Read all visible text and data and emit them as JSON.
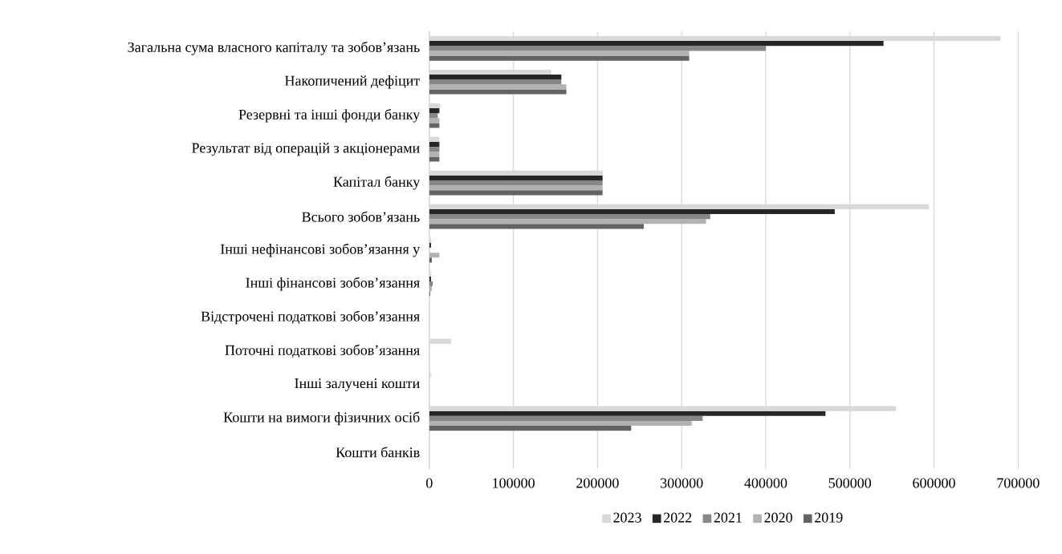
{
  "chart_data": {
    "type": "bar",
    "orientation": "horizontal",
    "categories": [
      "Загальна сума власного капіталу та зобов’язань",
      "Накопичений дефіцит",
      "Резервні та інші фонди банку",
      "Результат від операцій з акціонерами",
      "Капітал банку",
      "Всього зобов’язань",
      "Інші нефінансові зобов’язання у",
      "Інші фінансові зобов’язання",
      "Відстрочені податкові зобов’язання",
      "Поточні податкові зобов’язання",
      "Інші залучені кошти",
      "Кошти на вимоги фізичних осіб",
      "Кошти банків"
    ],
    "series": [
      {
        "name": "2023",
        "color": "#d9d9d9",
        "values": [
          679000,
          145000,
          13000,
          12000,
          206000,
          594000,
          2000,
          2000,
          0,
          26000,
          2000,
          555000,
          0
        ]
      },
      {
        "name": "2022",
        "color": "#262626",
        "values": [
          540000,
          157000,
          12000,
          12000,
          206000,
          482000,
          2000,
          2000,
          0,
          0,
          0,
          471000,
          0
        ]
      },
      {
        "name": "2021",
        "color": "#878787",
        "values": [
          400000,
          157000,
          10000,
          12000,
          206000,
          334000,
          0,
          4000,
          0,
          0,
          0,
          325000,
          0
        ]
      },
      {
        "name": "2020",
        "color": "#b2b2b2",
        "values": [
          309000,
          163000,
          12000,
          12000,
          206000,
          329000,
          12000,
          3000,
          0,
          0,
          0,
          312000,
          0
        ]
      },
      {
        "name": "2019",
        "color": "#636363",
        "values": [
          309000,
          163000,
          12000,
          12000,
          206000,
          255000,
          3000,
          1000,
          0,
          0,
          0,
          240000,
          0
        ]
      }
    ],
    "xlim": [
      0,
      700000
    ],
    "xticks": [
      0,
      100000,
      200000,
      300000,
      400000,
      500000,
      600000,
      700000
    ],
    "grid": "x",
    "legend": "bottom"
  }
}
